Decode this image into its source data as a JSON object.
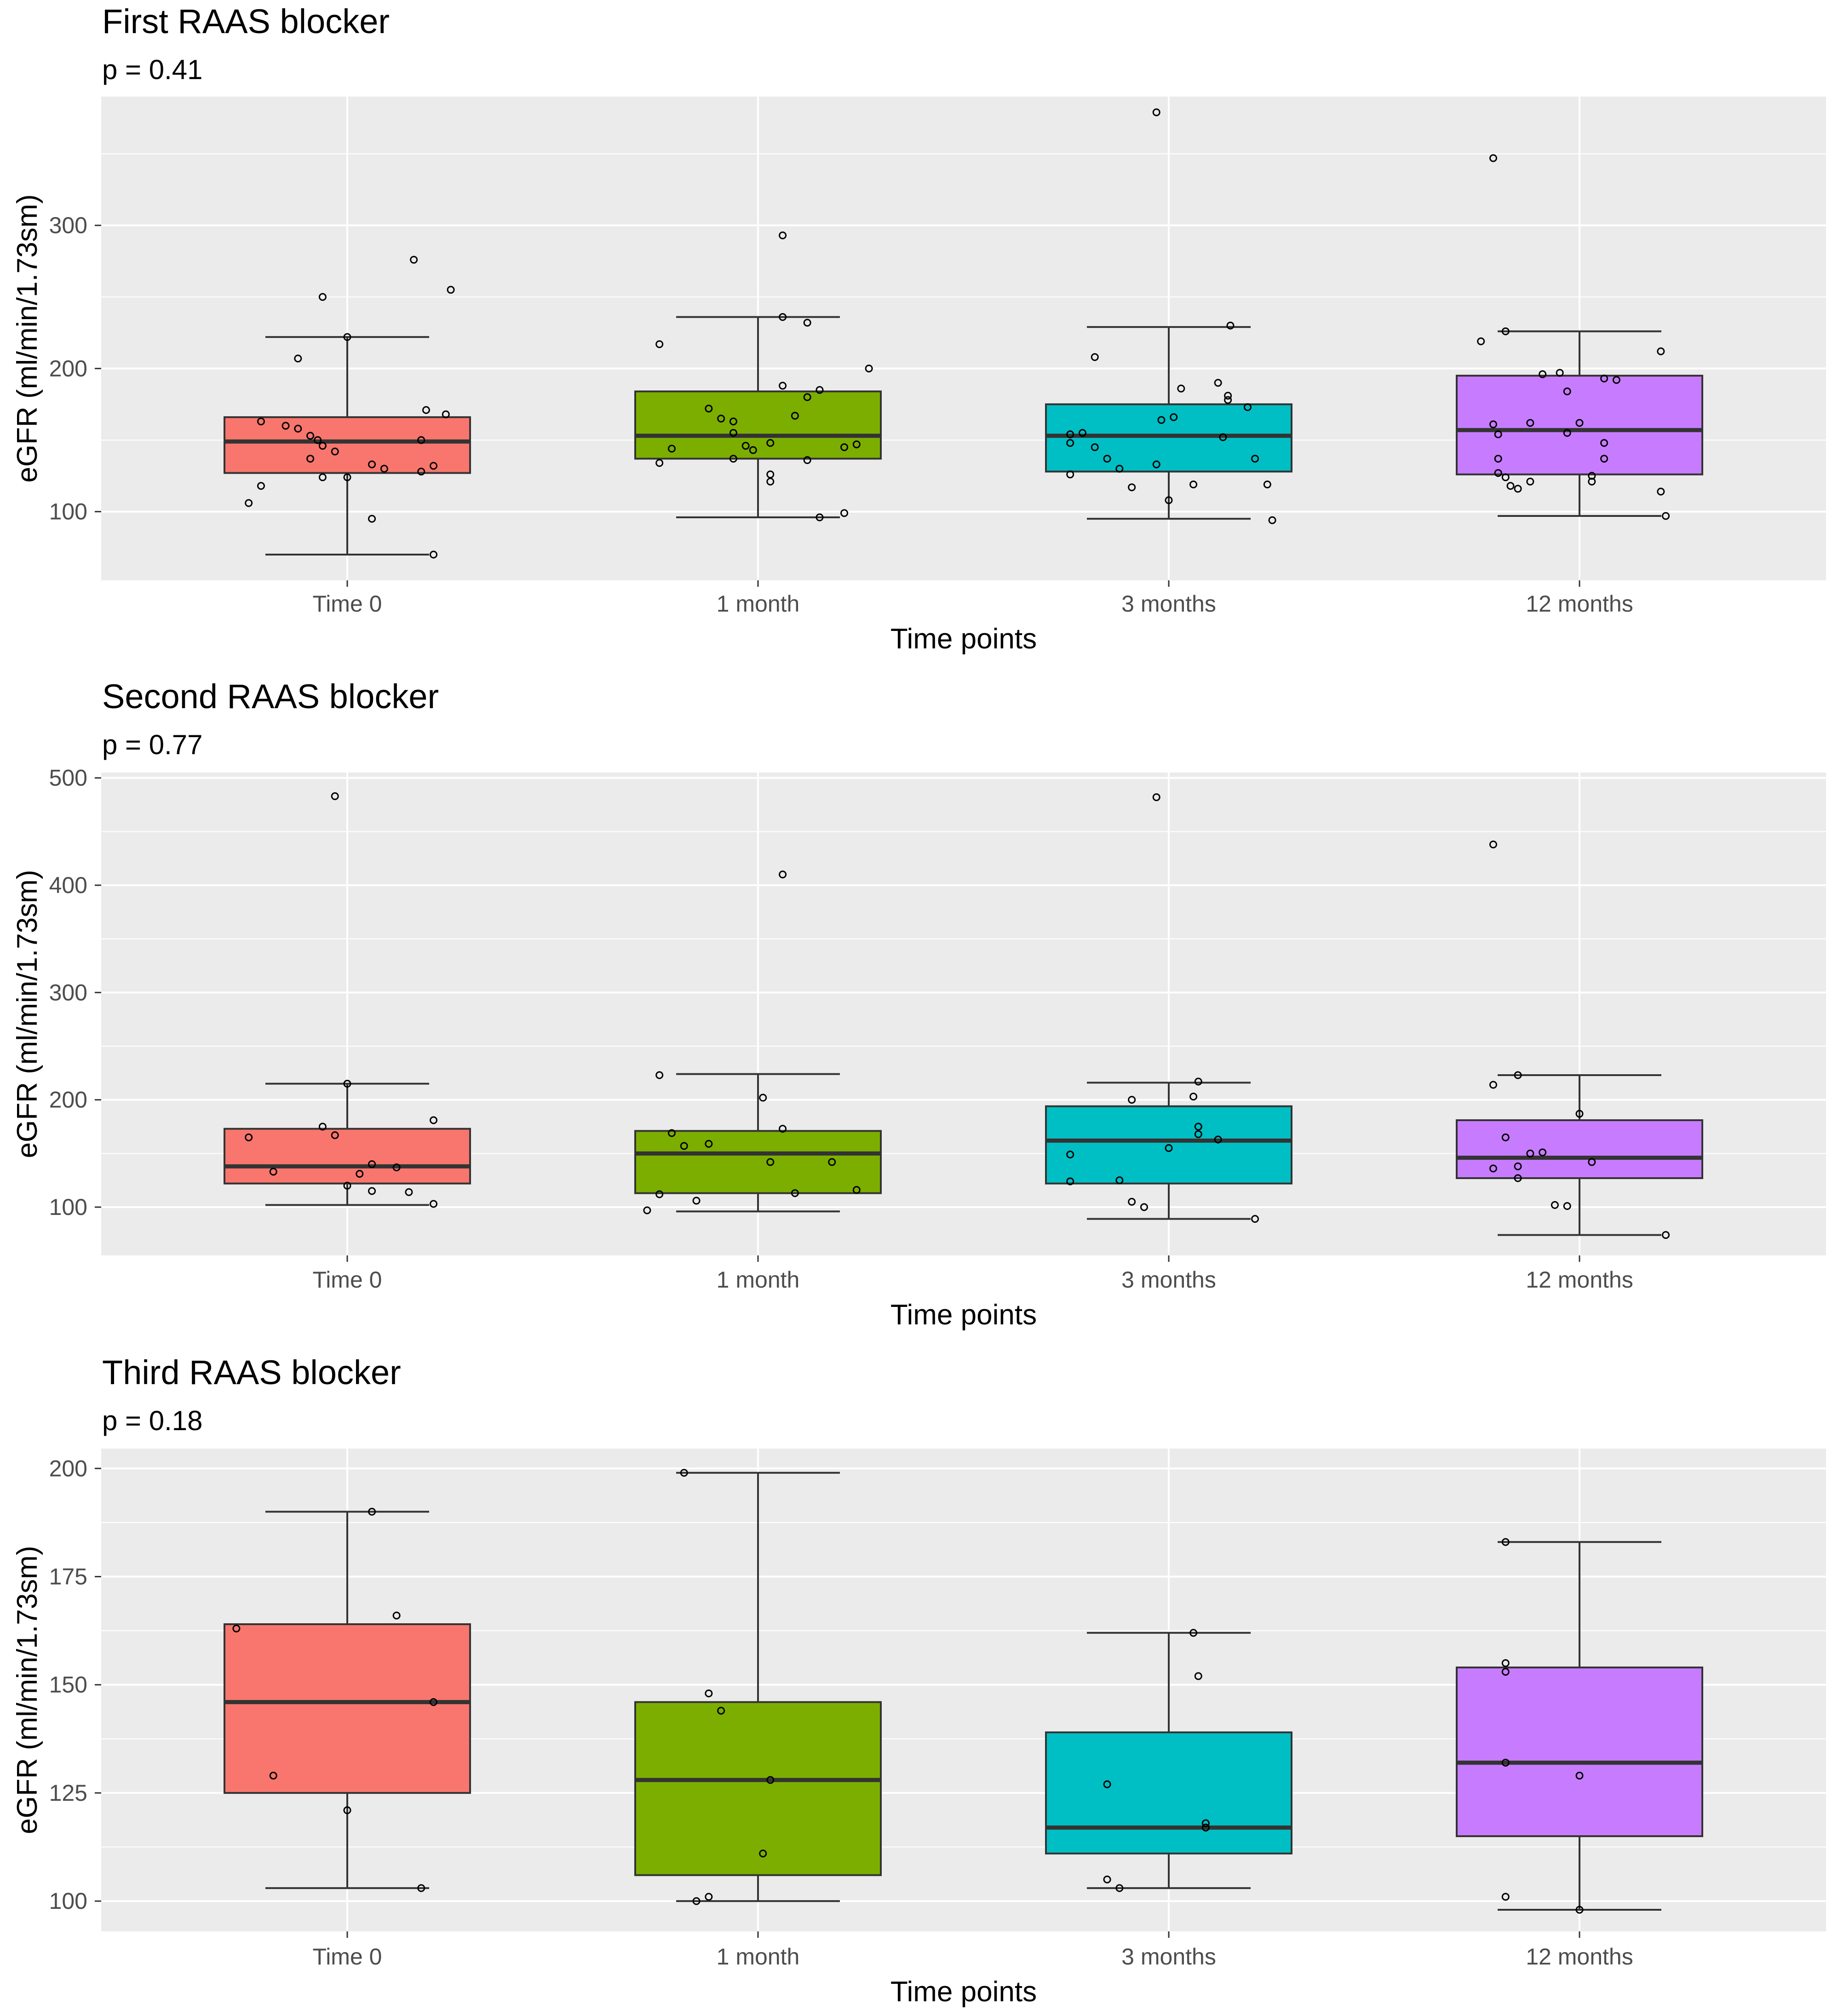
{
  "chart_data": [
    {
      "type": "box",
      "title": "First RAAS blocker",
      "subtitle": "p = 0.41",
      "xlabel": "Time points",
      "ylabel": "eGFR (ml/min/1.73sm)",
      "ylim": [
        52,
        390
      ],
      "yticks": [
        100,
        200,
        300
      ],
      "ytick_labels": [
        "100",
        "200",
        "300"
      ],
      "categories": [
        "Time 0",
        "1 month",
        "3 months",
        "12 months"
      ],
      "colors": [
        "#F8766D",
        "#7CAE00",
        "#00BFC4",
        "#C77CFF"
      ],
      "boxes": [
        {
          "whisker_low": 70,
          "q1": 127,
          "median": 149,
          "q3": 166,
          "whisker_high": 222
        },
        {
          "whisker_low": 96,
          "q1": 137,
          "median": 153,
          "q3": 184,
          "whisker_high": 236
        },
        {
          "whisker_low": 95,
          "q1": 128,
          "median": 153,
          "q3": 175,
          "whisker_high": 229
        },
        {
          "whisker_low": 97,
          "q1": 126,
          "median": 157,
          "q3": 195,
          "whisker_high": 226
        }
      ],
      "points": [
        [
          [
            -0.35,
            163
          ],
          [
            -0.25,
            160
          ],
          [
            -0.2,
            158
          ],
          [
            -0.15,
            153
          ],
          [
            -0.12,
            150
          ],
          [
            -0.1,
            146
          ],
          [
            -0.05,
            142
          ],
          [
            -0.15,
            137
          ],
          [
            -0.1,
            124
          ],
          [
            0.0,
            124
          ],
          [
            -0.35,
            118
          ],
          [
            -0.4,
            106
          ],
          [
            0.1,
            133
          ],
          [
            0.15,
            130
          ],
          [
            0.3,
            150
          ],
          [
            0.35,
            132
          ],
          [
            0.4,
            168
          ],
          [
            0.3,
            128
          ],
          [
            0.32,
            171
          ],
          [
            0.1,
            95
          ],
          [
            0.35,
            70
          ],
          [
            -0.1,
            250
          ],
          [
            0.0,
            222
          ],
          [
            -0.2,
            207
          ],
          [
            0.27,
            276
          ],
          [
            0.42,
            255
          ]
        ],
        [
          [
            -0.4,
            217
          ],
          [
            -0.4,
            134
          ],
          [
            -0.35,
            144
          ],
          [
            -0.2,
            172
          ],
          [
            -0.15,
            165
          ],
          [
            -0.1,
            155
          ],
          [
            -0.1,
            163
          ],
          [
            -0.1,
            137
          ],
          [
            -0.05,
            146
          ],
          [
            -0.02,
            143
          ],
          [
            0.05,
            148
          ],
          [
            0.05,
            121
          ],
          [
            0.05,
            126
          ],
          [
            0.1,
            188
          ],
          [
            0.15,
            167
          ],
          [
            0.2,
            136
          ],
          [
            0.2,
            180
          ],
          [
            0.2,
            232
          ],
          [
            0.25,
            185
          ],
          [
            0.35,
            145
          ],
          [
            0.4,
            147
          ],
          [
            0.45,
            200
          ],
          [
            0.25,
            96
          ],
          [
            0.35,
            99
          ],
          [
            0.1,
            236
          ],
          [
            0.1,
            293
          ]
        ],
        [
          [
            -0.4,
            126
          ],
          [
            -0.4,
            154
          ],
          [
            -0.4,
            148
          ],
          [
            -0.35,
            155
          ],
          [
            -0.3,
            145
          ],
          [
            -0.25,
            137
          ],
          [
            -0.2,
            130
          ],
          [
            -0.15,
            117
          ],
          [
            -0.05,
            133
          ],
          [
            -0.03,
            164
          ],
          [
            0.0,
            108
          ],
          [
            0.02,
            166
          ],
          [
            0.05,
            186
          ],
          [
            0.1,
            119
          ],
          [
            0.2,
            190
          ],
          [
            0.22,
            152
          ],
          [
            0.24,
            178
          ],
          [
            0.24,
            181
          ],
          [
            0.32,
            173
          ],
          [
            0.35,
            137
          ],
          [
            0.4,
            119
          ],
          [
            0.25,
            230
          ],
          [
            -0.3,
            208
          ],
          [
            0.42,
            94
          ],
          [
            -0.05,
            379
          ]
        ],
        [
          [
            -0.4,
            219
          ],
          [
            -0.35,
            161
          ],
          [
            -0.33,
            154
          ],
          [
            -0.33,
            137
          ],
          [
            -0.33,
            127
          ],
          [
            -0.3,
            124
          ],
          [
            -0.28,
            118
          ],
          [
            -0.25,
            116
          ],
          [
            -0.2,
            121
          ],
          [
            -0.2,
            162
          ],
          [
            -0.15,
            196
          ],
          [
            -0.3,
            226
          ],
          [
            -0.08,
            197
          ],
          [
            -0.05,
            184
          ],
          [
            -0.05,
            155
          ],
          [
            0.0,
            162
          ],
          [
            0.05,
            125
          ],
          [
            0.05,
            121
          ],
          [
            0.1,
            148
          ],
          [
            0.1,
            137
          ],
          [
            0.15,
            192
          ],
          [
            0.1,
            193
          ],
          [
            0.33,
            212
          ],
          [
            0.33,
            114
          ],
          [
            0.35,
            97
          ],
          [
            -0.35,
            347
          ]
        ]
      ]
    },
    {
      "type": "box",
      "title": "Second RAAS blocker",
      "subtitle": "p = 0.77",
      "xlabel": "Time points",
      "ylabel": "eGFR (ml/min/1.73sm)",
      "ylim": [
        55,
        505
      ],
      "yticks": [
        100,
        200,
        300,
        400,
        500
      ],
      "ytick_labels": [
        "100",
        "200",
        "300",
        "400",
        "500"
      ],
      "categories": [
        "Time 0",
        "1 month",
        "3 months",
        "12 months"
      ],
      "colors": [
        "#F8766D",
        "#7CAE00",
        "#00BFC4",
        "#C77CFF"
      ],
      "boxes": [
        {
          "whisker_low": 102,
          "q1": 122,
          "median": 138,
          "q3": 173,
          "whisker_high": 215
        },
        {
          "whisker_low": 96,
          "q1": 113,
          "median": 150,
          "q3": 171,
          "whisker_high": 224
        },
        {
          "whisker_low": 89,
          "q1": 122,
          "median": 162,
          "q3": 194,
          "whisker_high": 216
        },
        {
          "whisker_low": 74,
          "q1": 127,
          "median": 146,
          "q3": 181,
          "whisker_high": 223
        }
      ],
      "points": [
        [
          [
            -0.4,
            165
          ],
          [
            -0.3,
            133
          ],
          [
            -0.1,
            175
          ],
          [
            -0.05,
            167
          ],
          [
            0.0,
            120
          ],
          [
            0.05,
            131
          ],
          [
            0.1,
            140
          ],
          [
            0.1,
            115
          ],
          [
            0.2,
            137
          ],
          [
            0.25,
            114
          ],
          [
            0.35,
            103
          ],
          [
            0.35,
            181
          ],
          [
            -0.05,
            483
          ],
          [
            0.0,
            215
          ]
        ],
        [
          [
            -0.35,
            169
          ],
          [
            -0.3,
            157
          ],
          [
            -0.2,
            159
          ],
          [
            -0.25,
            106
          ],
          [
            -0.4,
            112
          ],
          [
            -0.45,
            97
          ],
          [
            0.02,
            202
          ],
          [
            0.1,
            173
          ],
          [
            0.05,
            142
          ],
          [
            0.15,
            113
          ],
          [
            0.3,
            142
          ],
          [
            0.4,
            116
          ],
          [
            -0.4,
            223
          ],
          [
            0.1,
            410
          ]
        ],
        [
          [
            -0.4,
            149
          ],
          [
            -0.4,
            124
          ],
          [
            -0.15,
            200
          ],
          [
            -0.2,
            125
          ],
          [
            -0.15,
            105
          ],
          [
            -0.1,
            100
          ],
          [
            0.0,
            155
          ],
          [
            0.1,
            203
          ],
          [
            0.12,
            217
          ],
          [
            0.12,
            175
          ],
          [
            0.12,
            168
          ],
          [
            0.2,
            163
          ],
          [
            0.35,
            89
          ],
          [
            -0.05,
            482
          ]
        ],
        [
          [
            -0.35,
            214
          ],
          [
            -0.35,
            136
          ],
          [
            -0.3,
            165
          ],
          [
            -0.25,
            127
          ],
          [
            -0.25,
            138
          ],
          [
            -0.2,
            150
          ],
          [
            -0.15,
            151
          ],
          [
            -0.1,
            102
          ],
          [
            -0.05,
            101
          ],
          [
            0.0,
            187
          ],
          [
            0.05,
            142
          ],
          [
            0.35,
            74
          ],
          [
            -0.25,
            223
          ],
          [
            -0.35,
            438
          ]
        ]
      ]
    },
    {
      "type": "box",
      "title": "Third RAAS blocker",
      "subtitle": "p = 0.18",
      "xlabel": "Time points",
      "ylabel": "eGFR (ml/min/1.73sm)",
      "ylim": [
        93,
        204.6
      ],
      "yticks": [
        100,
        125,
        150,
        175,
        200
      ],
      "ytick_labels": [
        "100",
        "125",
        "150",
        "175",
        "200"
      ],
      "categories": [
        "Time 0",
        "1 month",
        "3 months",
        "12 months"
      ],
      "colors": [
        "#F8766D",
        "#7CAE00",
        "#00BFC4",
        "#C77CFF"
      ],
      "boxes": [
        {
          "whisker_low": 103,
          "q1": 125,
          "median": 146,
          "q3": 164,
          "whisker_high": 190
        },
        {
          "whisker_low": 100,
          "q1": 106,
          "median": 128,
          "q3": 146,
          "whisker_high": 199
        },
        {
          "whisker_low": 103,
          "q1": 111,
          "median": 117,
          "q3": 139,
          "whisker_high": 162
        },
        {
          "whisker_low": 98,
          "q1": 115,
          "median": 132,
          "q3": 154,
          "whisker_high": 183
        }
      ],
      "points": [
        [
          [
            -0.45,
            163
          ],
          [
            -0.3,
            129
          ],
          [
            0.0,
            121
          ],
          [
            0.1,
            190
          ],
          [
            0.2,
            166
          ],
          [
            0.3,
            103
          ],
          [
            0.35,
            146
          ]
        ],
        [
          [
            -0.3,
            199
          ],
          [
            -0.25,
            100
          ],
          [
            -0.2,
            148
          ],
          [
            -0.2,
            101
          ],
          [
            -0.15,
            144
          ],
          [
            0.02,
            111
          ],
          [
            0.05,
            128
          ]
        ],
        [
          [
            -0.25,
            127
          ],
          [
            -0.25,
            105
          ],
          [
            -0.2,
            103
          ],
          [
            0.1,
            162
          ],
          [
            0.12,
            152
          ],
          [
            0.15,
            117
          ],
          [
            0.15,
            118
          ]
        ],
        [
          [
            -0.3,
            183
          ],
          [
            -0.3,
            155
          ],
          [
            -0.3,
            153
          ],
          [
            -0.3,
            101
          ],
          [
            -0.3,
            132
          ],
          [
            0.0,
            129
          ],
          [
            0.0,
            98
          ]
        ]
      ]
    }
  ]
}
